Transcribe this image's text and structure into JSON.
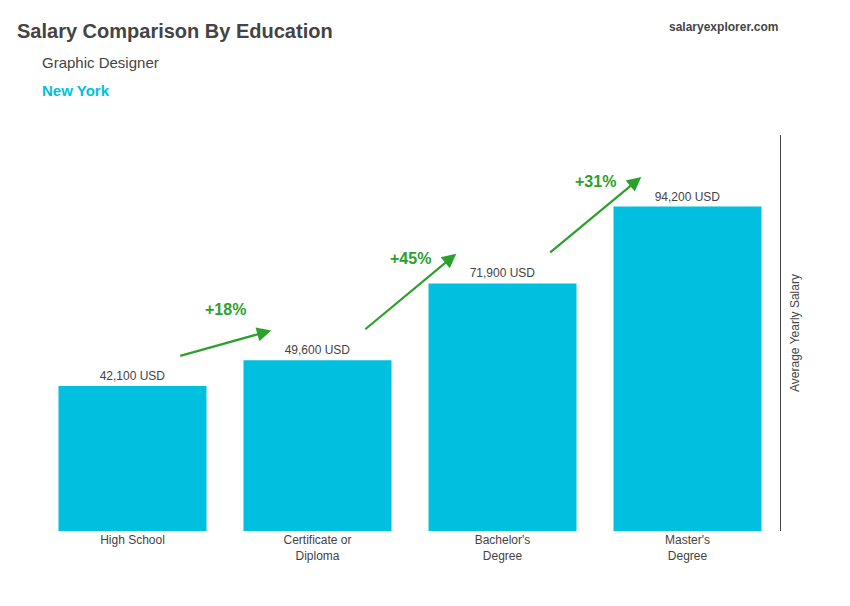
{
  "chart_data": {
    "type": "bar",
    "title": "Salary Comparison By Education",
    "subtitle": "Graphic Designer",
    "annotations": [
      {
        "text": "New York"
      },
      {
        "text": "salaryexplorer.com"
      },
      {
        "text": "+18%",
        "from": "High School",
        "to": "Certificate or\nDiploma"
      },
      {
        "text": "+45%",
        "from": "Certificate or\nDiploma",
        "to": "Bachelor's\nDegree"
      },
      {
        "text": "+31%",
        "from": "Bachelor's\nDegree",
        "to": "Master's\nDegree"
      }
    ],
    "ylabel": "Average Yearly Salary",
    "categories": [
      "High School",
      "Certificate or\nDiploma",
      "Bachelor's\nDegree",
      "Master's\nDegree"
    ],
    "values": [
      42100,
      49600,
      71900,
      94200
    ],
    "value_labels": [
      "42,100 USD",
      "49,600 USD",
      "71,900 USD",
      "94,200 USD"
    ],
    "data_labels": true,
    "color": "#00bfdf",
    "ylim": [
      0,
      115000
    ],
    "grid": false,
    "tick_labels": "x"
  }
}
